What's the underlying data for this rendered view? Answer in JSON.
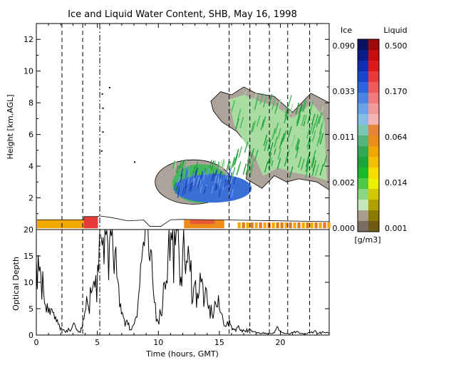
{
  "title": "Ice and Liquid Water Content, SHB, May 16, 1998",
  "chart_data": [
    {
      "type": "heatmap",
      "panel": "water-content",
      "ylabel": "Height [km,AGL]",
      "ylim": [
        0,
        13
      ],
      "yticks": [
        2,
        4,
        6,
        8,
        10,
        12
      ],
      "xlim": [
        0,
        24
      ],
      "dashed_lines_hours": [
        2.1,
        3.8,
        15.8,
        17.5,
        19.1,
        20.6,
        22.4
      ],
      "dashdot_lines_hours": [
        5.2
      ],
      "cloud_regions": [
        {
          "name": "mixed-layer",
          "t0": 10.2,
          "t1": 24.0,
          "h0": 1.6,
          "h1": 4.4
        },
        {
          "name": "upper-layer",
          "t0": 14.3,
          "t1": 24.0,
          "h0": 2.5,
          "h1": 9.2
        }
      ]
    },
    {
      "type": "line",
      "panel": "optical-depth",
      "xlabel": "Time (hours, GMT)",
      "ylabel": "Optical Depth",
      "xlim": [
        0,
        24
      ],
      "ylim": [
        0,
        20
      ],
      "xticks": [
        0,
        5,
        10,
        15,
        20
      ],
      "yticks": [
        0,
        5,
        10,
        15,
        20
      ],
      "series": [
        {
          "x": [
            0,
            0.3,
            0.6,
            0.9,
            1.2,
            1.5,
            1.8,
            2.1,
            2.4,
            2.7,
            3.0,
            3.3,
            3.6,
            3.9,
            4.2,
            4.5,
            4.8,
            5.1,
            5.4,
            5.7,
            6.0,
            6.3,
            6.6,
            6.9,
            7.2,
            7.5,
            7.8,
            8.1,
            8.4,
            8.7,
            9.0,
            9.3,
            9.6,
            9.9,
            10.2,
            10.5,
            10.8,
            11.1,
            11.4,
            11.7,
            12.0,
            12.3,
            12.6,
            12.9,
            13.2,
            13.5,
            13.8,
            14.1,
            14.4,
            14.7,
            15.0,
            15.3,
            15.6,
            15.9,
            16.2,
            16.5,
            16.8,
            17.1,
            17.4,
            17.7,
            18.0,
            18.3,
            18.6,
            18.9,
            19.2,
            19.5,
            19.8,
            20.1,
            20.4,
            20.7,
            21.0,
            21.3,
            21.6,
            21.9,
            22.2,
            22.5,
            22.8,
            23.1,
            23.4,
            23.7,
            24.0
          ],
          "values": [
            14,
            13,
            8,
            6,
            5,
            3,
            2,
            1,
            0.5,
            1,
            2,
            1,
            0.5,
            3,
            6,
            8,
            9,
            12,
            17,
            19,
            18,
            15,
            11,
            6,
            3,
            2,
            1,
            3,
            8,
            16,
            20,
            14,
            8,
            3,
            4,
            10,
            16,
            18,
            17,
            15,
            16,
            14,
            12,
            9,
            8,
            10,
            7,
            5,
            4,
            6,
            5,
            3,
            2,
            2,
            1,
            1.5,
            1,
            0.8,
            1,
            0.6,
            0.5,
            0.4,
            0.5,
            0.3,
            0.3,
            0.4,
            1.5,
            0.5,
            0.3,
            0.2,
            0.4,
            0.6,
            0.3,
            0.2,
            0.3,
            0.5,
            0.8,
            0.3,
            0.5,
            0.4,
            0.3
          ]
        }
      ]
    }
  ],
  "colorbar": {
    "ice_label": "Ice",
    "liquid_label": "Liquid",
    "unit": "[g/m3]",
    "ice_ticks": [
      "0.090",
      "0.033",
      "0.011",
      "0.002",
      "0.000"
    ],
    "liquid_ticks": [
      "0.500",
      "0.170",
      "0.064",
      "0.014",
      "0.001"
    ],
    "ice_colors": [
      "#0a1060",
      "#0a1c8a",
      "#0d2fb0",
      "#1a46cc",
      "#2d63dc",
      "#4c82e4",
      "#6aa2e8",
      "#86bde6",
      "#7cc6b2",
      "#55b47c",
      "#35a654",
      "#1ea43a",
      "#1cb82c",
      "#50c848",
      "#8cd882",
      "#c4e6b8",
      "#a89c8c",
      "#7a6c62"
    ],
    "liquid_colors": [
      "#9e0a0a",
      "#c40d0d",
      "#dc1a1a",
      "#e63a3a",
      "#ee5a5a",
      "#f27a7a",
      "#f59a9a",
      "#f8b4b4",
      "#e7843a",
      "#ee8c1a",
      "#f2a800",
      "#f5c000",
      "#f8dc00",
      "#eef000",
      "#d4c800",
      "#b0a000",
      "#8a7a00",
      "#6e5a10"
    ]
  }
}
